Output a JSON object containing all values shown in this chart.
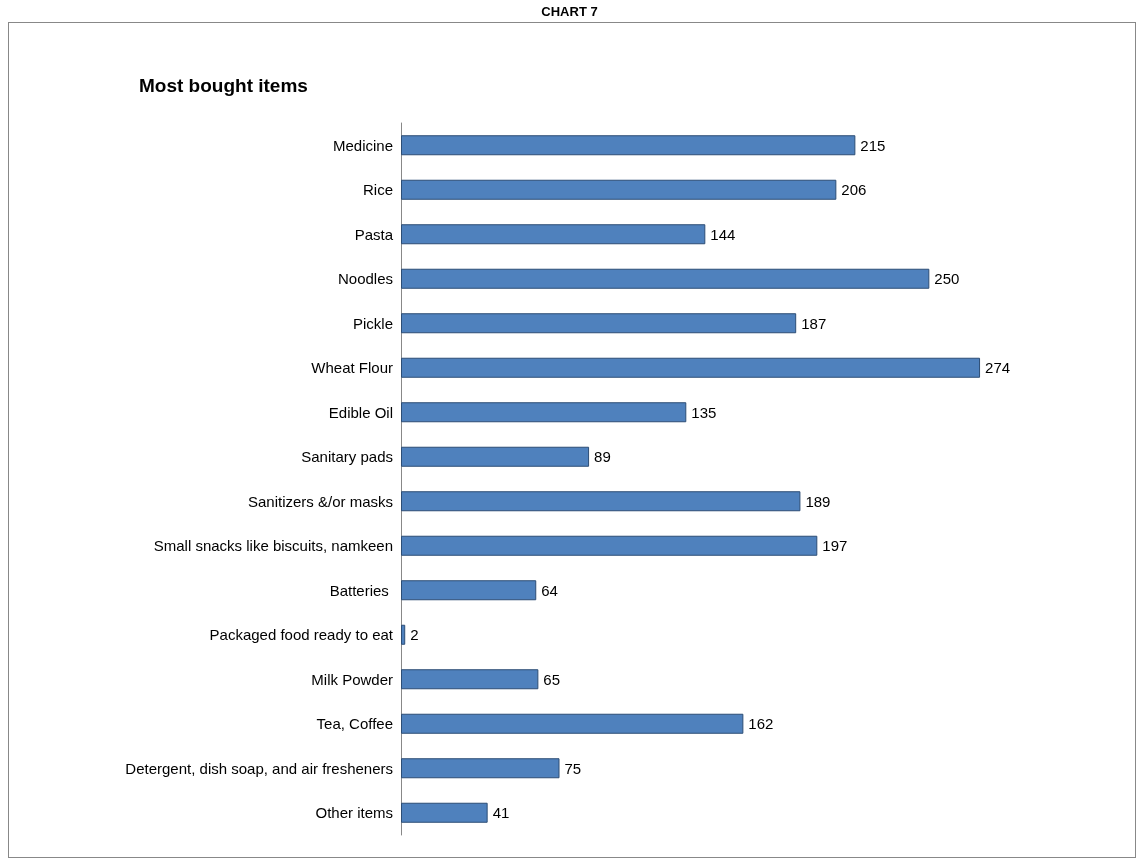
{
  "chart_data": {
    "type": "bar",
    "orientation": "horizontal",
    "title": "CHART 7",
    "subtitle": "Most bought items",
    "categories": [
      "Medicine",
      "Rice",
      "Pasta",
      "Noodles",
      "Pickle",
      "Wheat Flour",
      "Edible Oil",
      "Sanitary pads",
      "Sanitizers &/or masks",
      "Small snacks like biscuits, namkeen",
      "Batteries ",
      "Packaged food ready to eat",
      "Milk Powder",
      "Tea, Coffee",
      "Detergent, dish soap, and air fresheners",
      "Other items"
    ],
    "values": [
      215,
      206,
      144,
      250,
      187,
      274,
      135,
      89,
      189,
      197,
      64,
      2,
      65,
      162,
      75,
      41
    ],
    "color": "#4f81bd",
    "data_labels": true
  }
}
